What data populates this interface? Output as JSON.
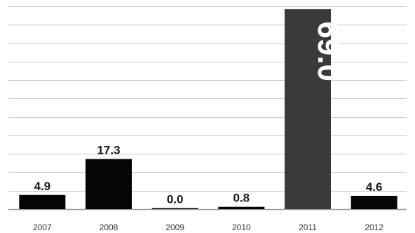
{
  "chart_data": {
    "type": "bar",
    "categories": [
      "2007",
      "2008",
      "2009",
      "2010",
      "2011",
      "2012"
    ],
    "values": [
      4.9,
      17.3,
      0.0,
      0.8,
      69.0,
      4.6
    ],
    "value_labels": [
      "4.9",
      "17.3",
      "0.0",
      "0.8",
      "69.0",
      "4.6"
    ],
    "highlight_index": 4,
    "title": "",
    "xlabel": "",
    "ylabel": "",
    "ylim": [
      0,
      70
    ],
    "grid": true,
    "colors": {
      "bar": "#050505",
      "highlight": "#3a3a3a",
      "grid": "#c8c8c8"
    }
  }
}
